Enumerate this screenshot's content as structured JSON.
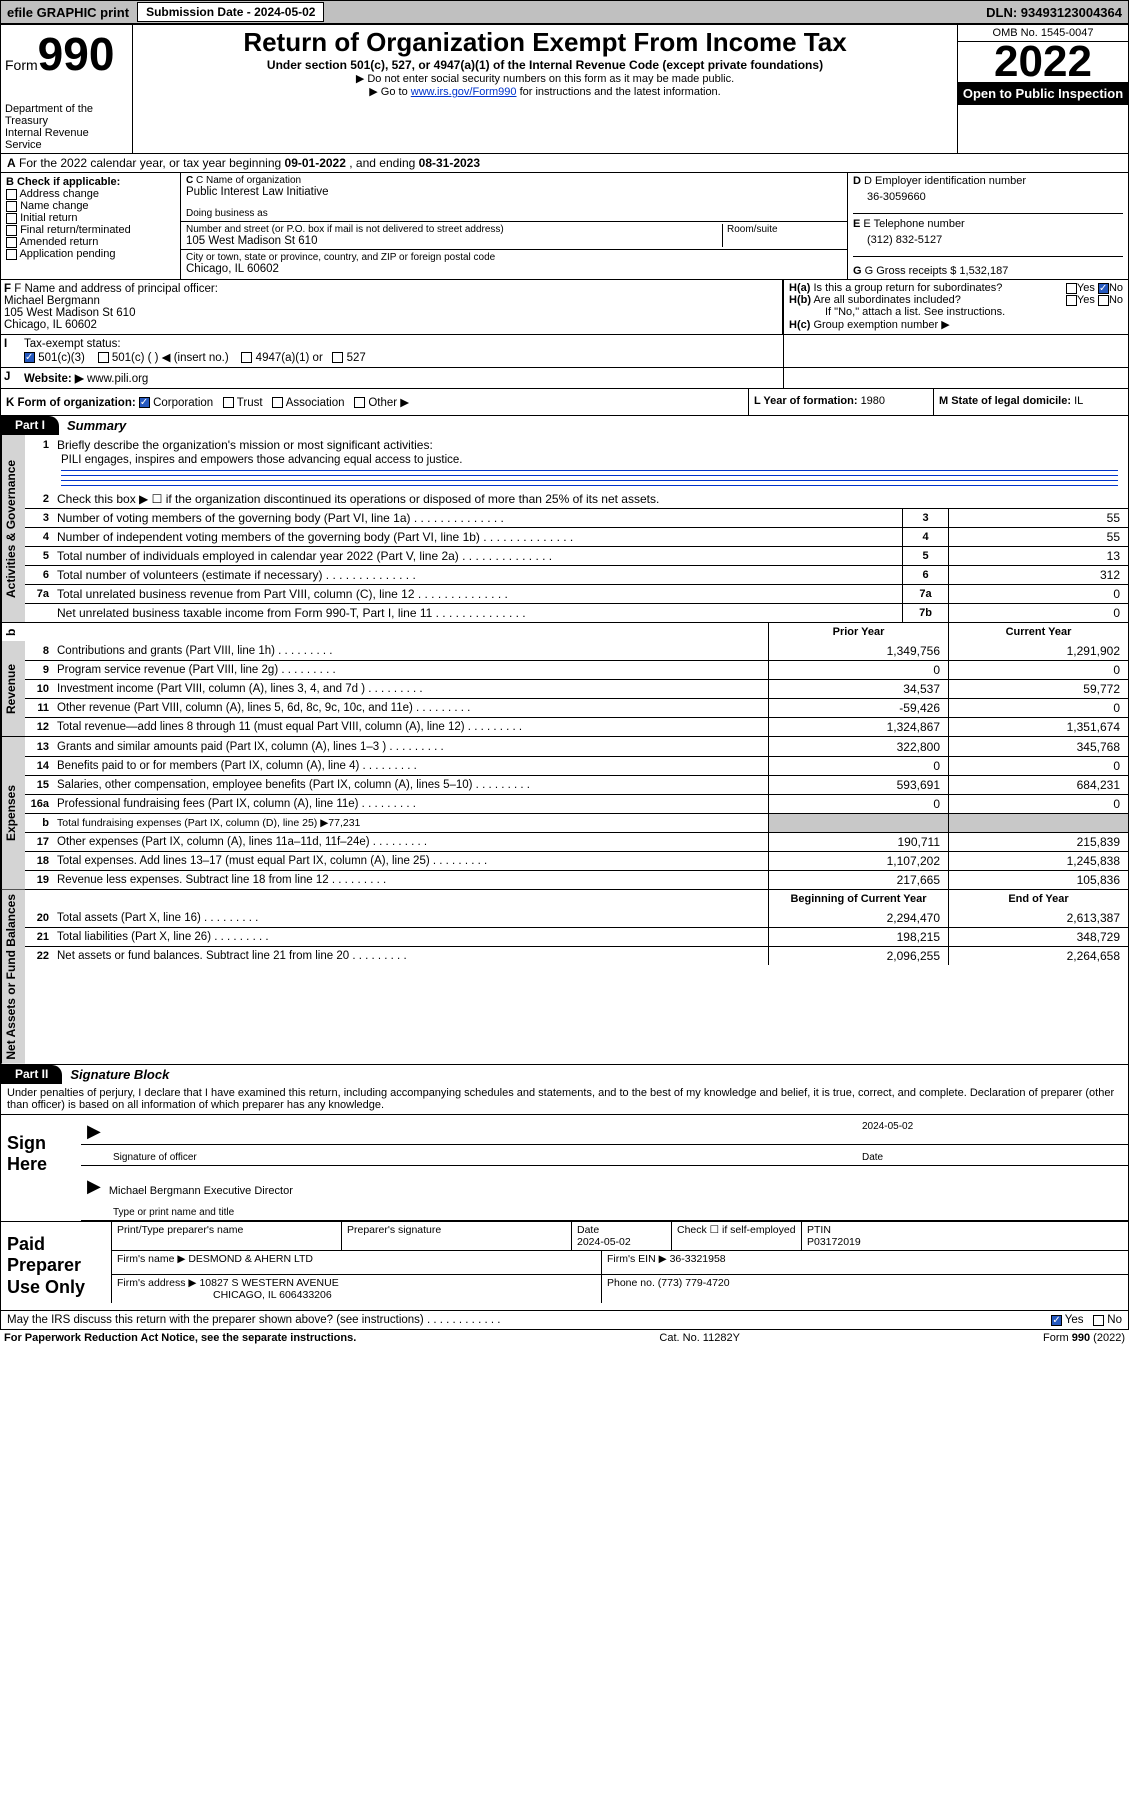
{
  "topbar": {
    "efile": "efile GRAPHIC print",
    "sublabel": "Submission Date - 2024-05-02",
    "dln": "DLN: 93493123004364"
  },
  "header": {
    "form_word": "Form",
    "form_num": "990",
    "dept": "Department of the Treasury\nInternal Revenue Service",
    "title": "Return of Organization Exempt From Income Tax",
    "sub1": "Under section 501(c), 527, or 4947(a)(1) of the Internal Revenue Code (except private foundations)",
    "sub2": "Do not enter social security numbers on this form as it may be made public.",
    "sub3a": "Go to ",
    "sub3_link": "www.irs.gov/Form990",
    "sub3b": " for instructions and the latest information.",
    "omb": "OMB No. 1545-0047",
    "year": "2022",
    "inspect": "Open to Public Inspection"
  },
  "rowA": {
    "prefix": "A",
    "text": " For the 2022 calendar year, or tax year beginning ",
    "begin": "09-01-2022",
    "mid": " , and ending ",
    "end": "08-31-2023"
  },
  "colB": {
    "label": "B Check if applicable:",
    "items": [
      "Address change",
      "Name change",
      "Initial return",
      "Final return/terminated",
      "Amended return",
      "Application pending"
    ]
  },
  "colC": {
    "c_label": "C Name of organization",
    "org": "Public Interest Law Initiative",
    "dba_label": "Doing business as",
    "addr_label": "Number and street (or P.O. box if mail is not delivered to street address)",
    "room_label": "Room/suite",
    "addr": "105 West Madison St 610",
    "city_label": "City or town, state or province, country, and ZIP or foreign postal code",
    "city": "Chicago, IL  60602"
  },
  "colDE": {
    "d_label": "D Employer identification number",
    "ein": "36-3059660",
    "e_label": "E Telephone number",
    "phone": "(312) 832-5127",
    "g_label": "G Gross receipts $ ",
    "gross": "1,532,187"
  },
  "rowF": {
    "f_label": "F Name and address of principal officer:",
    "name": "Michael Bergmann",
    "addr1": "105 West Madison St 610",
    "addr2": "Chicago, IL  60602"
  },
  "rowH": {
    "ha_q": "Is this a group return for subordinates?",
    "hb_q": "Are all subordinates included?",
    "hnote": "If \"No,\" attach a list. See instructions.",
    "hc_label": "Group exemption number ▶"
  },
  "rowI": {
    "label": "Tax-exempt status:",
    "opts": [
      "501(c)(3)",
      "501(c) (  ) ◀ (insert no.)",
      "4947(a)(1) or",
      "527"
    ]
  },
  "rowJ": {
    "label": "Website: ▶",
    "url": "www.pili.org"
  },
  "rowK": {
    "label": "K Form of organization:",
    "opts": [
      "Corporation",
      "Trust",
      "Association",
      "Other ▶"
    ]
  },
  "rowL": {
    "label": "L Year of formation: ",
    "val": "1980"
  },
  "rowM": {
    "label": "M State of legal domicile: ",
    "val": "IL"
  },
  "part1": {
    "hdr": "Part I",
    "title": "Summary"
  },
  "mission": {
    "q": "Briefly describe the organization's mission or most significant activities:",
    "text": "PILI engages, inspires and empowers those advancing equal access to justice."
  },
  "gov_lines": [
    {
      "n": "2",
      "desc": "Check this box ▶ ☐  if the organization discontinued its operations or disposed of more than 25% of its net assets.",
      "noval": true
    },
    {
      "n": "3",
      "desc": "Number of voting members of the governing body (Part VI, line 1a)",
      "box": "3",
      "val": "55"
    },
    {
      "n": "4",
      "desc": "Number of independent voting members of the governing body (Part VI, line 1b)",
      "box": "4",
      "val": "55"
    },
    {
      "n": "5",
      "desc": "Total number of individuals employed in calendar year 2022 (Part V, line 2a)",
      "box": "5",
      "val": "13"
    },
    {
      "n": "6",
      "desc": "Total number of volunteers (estimate if necessary)",
      "box": "6",
      "val": "312"
    },
    {
      "n": "7a",
      "desc": "Total unrelated business revenue from Part VIII, column (C), line 12",
      "box": "7a",
      "val": "0"
    },
    {
      "n": "",
      "desc": "Net unrelated business taxable income from Form 990-T, Part I, line 11",
      "box": "7b",
      "val": "0"
    }
  ],
  "cols_hdr": {
    "prior": "Prior Year",
    "curr": "Current Year"
  },
  "revenue": [
    {
      "n": "8",
      "desc": "Contributions and grants (Part VIII, line 1h)",
      "p": "1,349,756",
      "c": "1,291,902"
    },
    {
      "n": "9",
      "desc": "Program service revenue (Part VIII, line 2g)",
      "p": "0",
      "c": "0"
    },
    {
      "n": "10",
      "desc": "Investment income (Part VIII, column (A), lines 3, 4, and 7d )",
      "p": "34,537",
      "c": "59,772"
    },
    {
      "n": "11",
      "desc": "Other revenue (Part VIII, column (A), lines 5, 6d, 8c, 9c, 10c, and 11e)",
      "p": "-59,426",
      "c": "0"
    },
    {
      "n": "12",
      "desc": "Total revenue—add lines 8 through 11 (must equal Part VIII, column (A), line 12)",
      "p": "1,324,867",
      "c": "1,351,674"
    }
  ],
  "expenses": [
    {
      "n": "13",
      "desc": "Grants and similar amounts paid (Part IX, column (A), lines 1–3 )",
      "p": "322,800",
      "c": "345,768"
    },
    {
      "n": "14",
      "desc": "Benefits paid to or for members (Part IX, column (A), line 4)",
      "p": "0",
      "c": "0"
    },
    {
      "n": "15",
      "desc": "Salaries, other compensation, employee benefits (Part IX, column (A), lines 5–10)",
      "p": "593,691",
      "c": "684,231"
    },
    {
      "n": "16a",
      "desc": "Professional fundraising fees (Part IX, column (A), line 11e)",
      "p": "0",
      "c": "0"
    },
    {
      "n": "b",
      "desc": "Total fundraising expenses (Part IX, column (D), line 25) ▶77,231",
      "grey": true
    },
    {
      "n": "17",
      "desc": "Other expenses (Part IX, column (A), lines 11a–11d, 11f–24e)",
      "p": "190,711",
      "c": "215,839"
    },
    {
      "n": "18",
      "desc": "Total expenses. Add lines 13–17 (must equal Part IX, column (A), line 25)",
      "p": "1,107,202",
      "c": "1,245,838"
    },
    {
      "n": "19",
      "desc": "Revenue less expenses. Subtract line 18 from line 12",
      "p": "217,665",
      "c": "105,836"
    }
  ],
  "na_hdr": {
    "b": "Beginning of Current Year",
    "e": "End of Year"
  },
  "netassets": [
    {
      "n": "20",
      "desc": "Total assets (Part X, line 16)",
      "p": "2,294,470",
      "c": "2,613,387"
    },
    {
      "n": "21",
      "desc": "Total liabilities (Part X, line 26)",
      "p": "198,215",
      "c": "348,729"
    },
    {
      "n": "22",
      "desc": "Net assets or fund balances. Subtract line 21 from line 20",
      "p": "2,096,255",
      "c": "2,264,658"
    }
  ],
  "part2": {
    "hdr": "Part II",
    "title": "Signature Block"
  },
  "decl": "Under penalties of perjury, I declare that I have examined this return, including accompanying schedules and statements, and to the best of my knowledge and belief, it is true, correct, and complete. Declaration of preparer (other than officer) is based on all information of which preparer has any knowledge.",
  "sign": {
    "side": "Sign Here",
    "sig_label": "Signature of officer",
    "date_label": "Date",
    "date": "2024-05-02",
    "name_title": "Michael Bergmann Executive Director",
    "typed_label": "Type or print name and title"
  },
  "prep": {
    "side": "Paid Preparer Use Only",
    "h1": "Print/Type preparer's name",
    "h2": "Preparer's signature",
    "h3_l": "Date",
    "h3_v": "2024-05-02",
    "h4_l": "Check ☐ if self-employed",
    "h5_l": "PTIN",
    "h5_v": "P03172019",
    "firm_l": "Firm's name    ▶",
    "firm": "DESMOND & AHERN LTD",
    "ein_l": "Firm's EIN ▶",
    "ein": "36-3321958",
    "addr_l": "Firm's address ▶",
    "addr1": "10827 S WESTERN AVENUE",
    "addr2": "CHICAGO, IL  606433206",
    "ph_l": "Phone no. ",
    "ph": "(773) 779-4720"
  },
  "discuss": {
    "q": "May the IRS discuss this return with the preparer shown above? (see instructions)",
    "yes": "Yes",
    "no": "No"
  },
  "footer": {
    "left": "For Paperwork Reduction Act Notice, see the separate instructions.",
    "mid": "Cat. No. 11282Y",
    "right": "Form 990 (2022)"
  },
  "vtabs": {
    "gov": "Activities & Governance",
    "rev": "Revenue",
    "exp": "Expenses",
    "na": "Net Assets or Fund Balances"
  }
}
